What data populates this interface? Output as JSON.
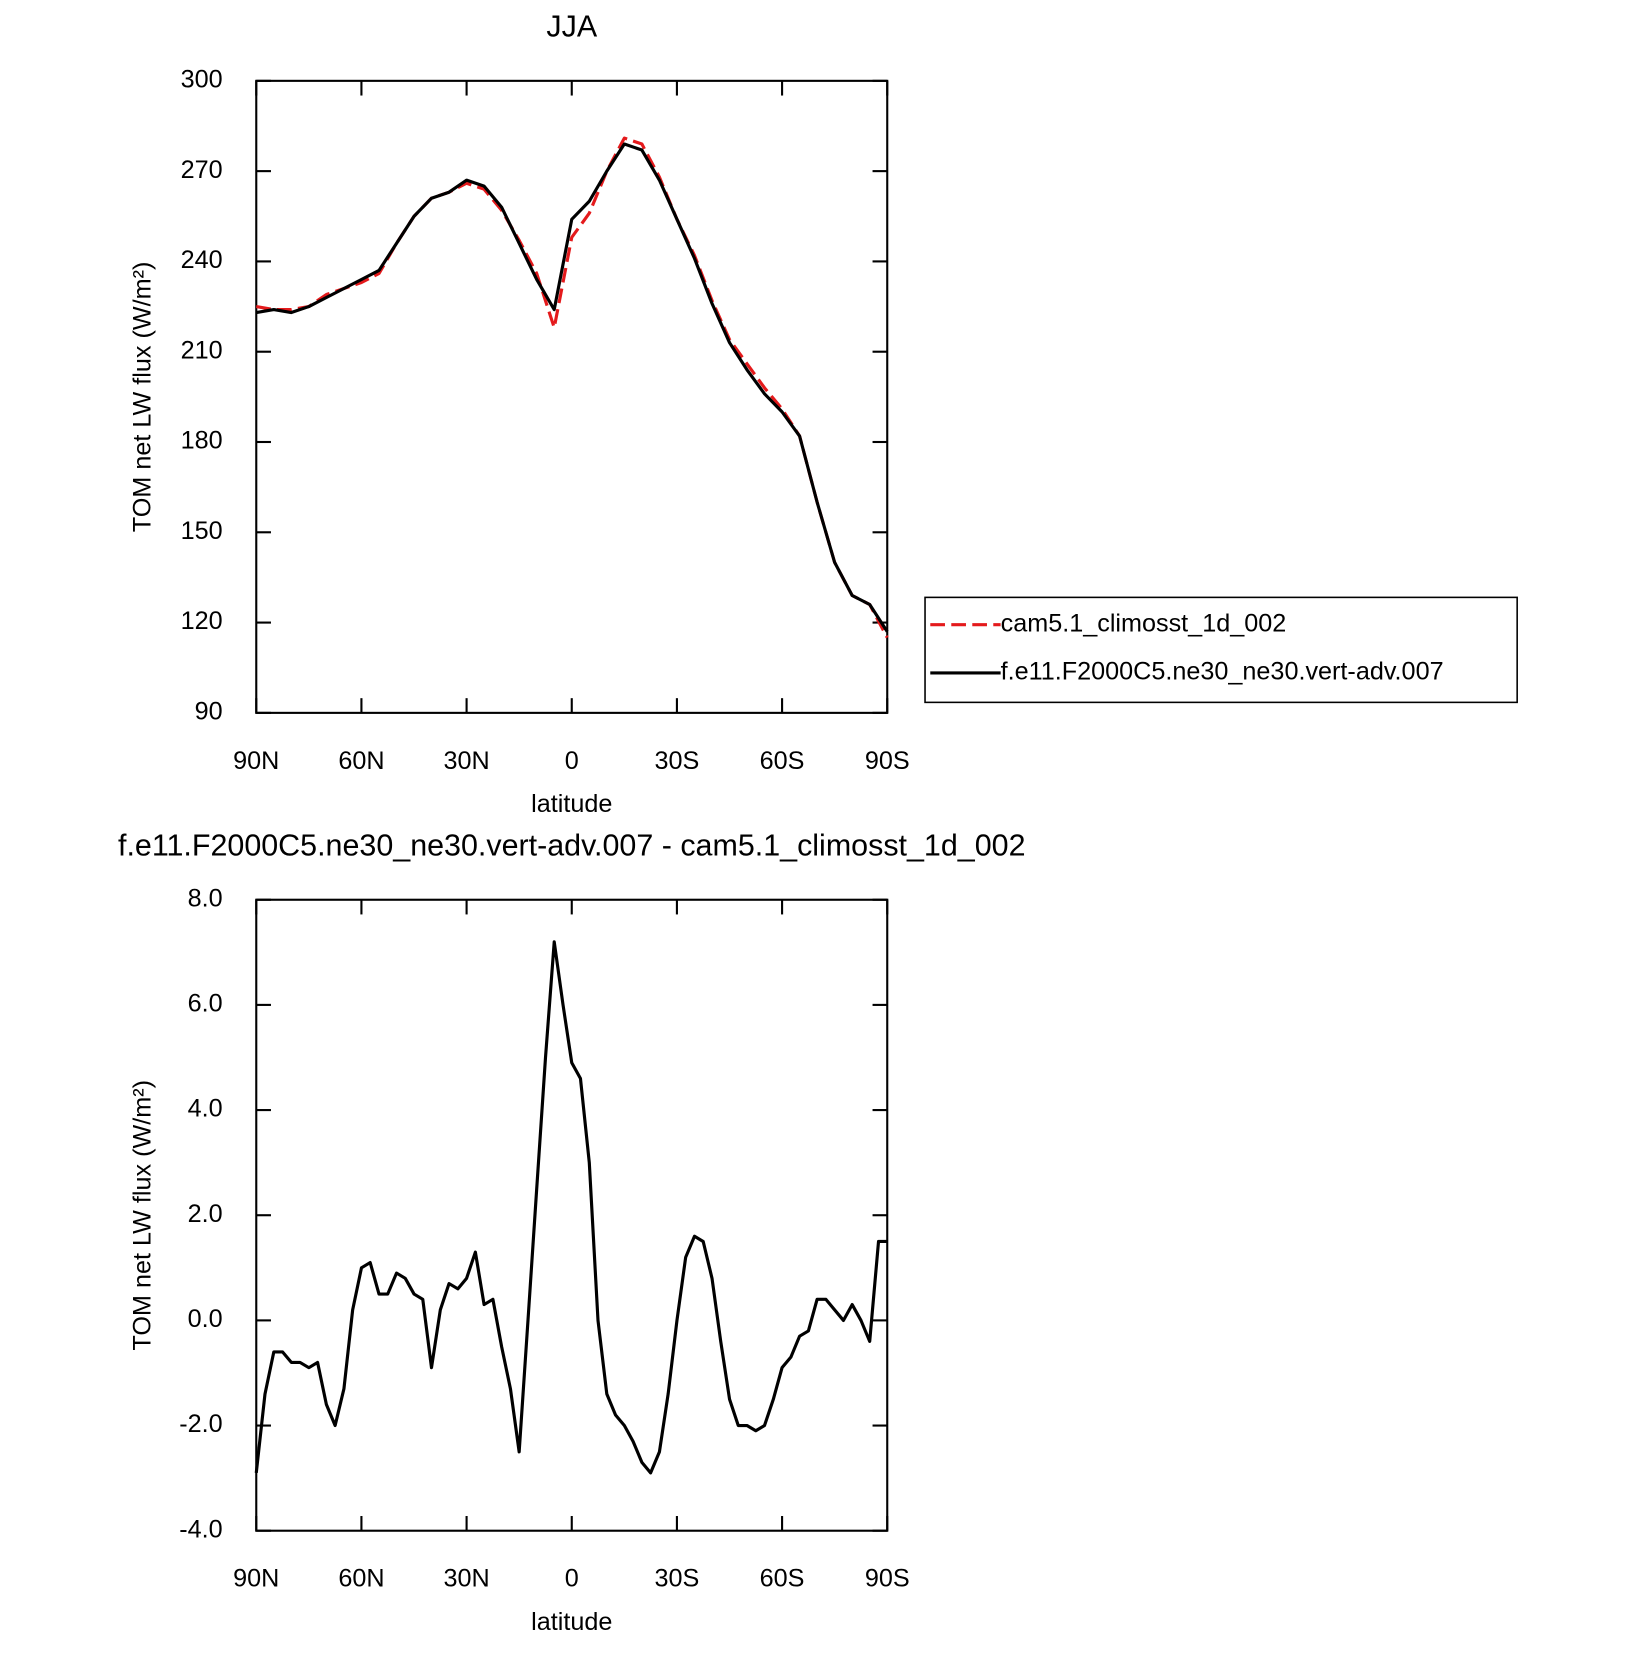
{
  "chart_data": [
    {
      "type": "line",
      "title": "JJA",
      "xlabel": "latitude",
      "ylabel": "TOM net LW flux (W/m²)",
      "x": [
        90,
        85,
        80,
        75,
        70,
        65,
        60,
        55,
        50,
        45,
        40,
        35,
        30,
        25,
        20,
        15,
        10,
        5,
        0,
        -5,
        -10,
        -15,
        -20,
        -25,
        -30,
        -35,
        -40,
        -45,
        -50,
        -55,
        -60,
        -65,
        -70,
        -75,
        -80,
        -85,
        -90
      ],
      "series": [
        {
          "name": "cam5.1_climosst_1d_002",
          "color": "#e41a1c",
          "dash": true,
          "values": [
            225,
            224,
            224,
            225,
            229,
            231,
            233,
            236,
            246,
            255,
            261,
            263,
            266,
            264,
            257,
            247,
            236,
            218,
            248,
            256,
            270,
            281,
            279,
            268,
            254,
            242,
            227,
            214,
            206,
            198,
            191,
            182,
            160,
            140,
            129,
            126,
            115
          ]
        },
        {
          "name": "f.e11.F2000C5.ne30_ne30.vert-adv.007",
          "color": "#000000",
          "dash": false,
          "values": [
            223,
            224,
            223,
            225,
            228,
            231,
            234,
            237,
            246,
            255,
            261,
            263,
            267,
            265,
            258,
            246,
            234,
            224,
            254,
            260,
            270,
            279,
            277,
            267,
            254,
            241,
            226,
            213,
            204,
            196,
            190,
            182,
            160,
            140,
            129,
            126,
            117
          ]
        }
      ],
      "xlim": [
        90,
        -90
      ],
      "xticks": [
        {
          "value": 90,
          "label": "90N"
        },
        {
          "value": 60,
          "label": "60N"
        },
        {
          "value": 30,
          "label": "30N"
        },
        0,
        {
          "value": -30,
          "label": "30S"
        },
        {
          "value": -60,
          "label": "60S"
        },
        {
          "value": -90,
          "label": "90S"
        }
      ],
      "ylim": [
        90,
        300
      ],
      "yticks": [
        90,
        120,
        150,
        180,
        210,
        240,
        270,
        300
      ],
      "legend": "right"
    },
    {
      "type": "line",
      "title": "f.e11.F2000C5.ne30_ne30.vert-adv.007 - cam5.1_climosst_1d_002",
      "xlabel": "latitude",
      "ylabel": "TOM net LW flux (W/m²)",
      "x": [
        90,
        87.5,
        85,
        82.5,
        80,
        77.5,
        75,
        72.5,
        70,
        67.5,
        65,
        62.5,
        60,
        57.5,
        55,
        52.5,
        50,
        47.5,
        45,
        42.5,
        40,
        37.5,
        35,
        32.5,
        30,
        27.5,
        25,
        22.5,
        20,
        17.5,
        15,
        12.5,
        10,
        7.5,
        5,
        2.5,
        0,
        -2.5,
        -5,
        -7.5,
        -10,
        -12.5,
        -15,
        -17.5,
        -20,
        -22.5,
        -25,
        -27.5,
        -30,
        -32.5,
        -35,
        -37.5,
        -40,
        -42.5,
        -45,
        -47.5,
        -50,
        -52.5,
        -55,
        -57.5,
        -60,
        -62.5,
        -65,
        -67.5,
        -70,
        -72.5,
        -75,
        -77.5,
        -80,
        -82.5,
        -85,
        -87.5,
        -90
      ],
      "series": [
        {
          "name": "f.e11.F2000C5.ne30_ne30.vert-adv.007 - cam5.1_climosst_1d_002",
          "color": "#000000",
          "dash": false,
          "values": [
            -2.9,
            -1.4,
            -0.6,
            -0.6,
            -0.8,
            -0.8,
            -0.9,
            -0.8,
            -1.6,
            -2.0,
            -1.3,
            0.2,
            1.0,
            1.1,
            0.5,
            0.5,
            0.9,
            0.8,
            0.5,
            0.4,
            -0.9,
            0.2,
            0.7,
            0.6,
            0.8,
            1.3,
            0.3,
            0.4,
            -0.5,
            -1.3,
            -2.5,
            0.0,
            2.5,
            5.0,
            7.2,
            6.0,
            4.9,
            4.6,
            3.0,
            0.0,
            -1.4,
            -1.8,
            -2.0,
            -2.3,
            -2.7,
            -2.9,
            -2.5,
            -1.4,
            0.0,
            1.2,
            1.6,
            1.5,
            0.8,
            -0.4,
            -1.5,
            -2.0,
            -2.0,
            -2.1,
            -2.0,
            -1.5,
            -0.9,
            -0.7,
            -0.3,
            -0.2,
            0.4,
            0.4,
            0.2,
            0.0,
            0.3,
            0.0,
            -0.4,
            1.5,
            1.5
          ]
        }
      ],
      "xlim": [
        90,
        -90
      ],
      "xticks": [
        {
          "value": 90,
          "label": "90N"
        },
        {
          "value": 60,
          "label": "60N"
        },
        {
          "value": 30,
          "label": "30N"
        },
        0,
        {
          "value": -30,
          "label": "30S"
        },
        {
          "value": -60,
          "label": "60S"
        },
        {
          "value": -90,
          "label": "90S"
        }
      ],
      "ylim": [
        -4,
        8
      ],
      "yticks": [
        {
          "value": -4,
          "label": "-4.0"
        },
        {
          "value": -2,
          "label": "-2.0"
        },
        {
          "value": 0,
          "label": "0.0"
        },
        {
          "value": 2,
          "label": "2.0"
        },
        {
          "value": 4,
          "label": "4.0"
        },
        {
          "value": 6,
          "label": "6.0"
        },
        {
          "value": 8,
          "label": "8.0"
        }
      ]
    }
  ]
}
